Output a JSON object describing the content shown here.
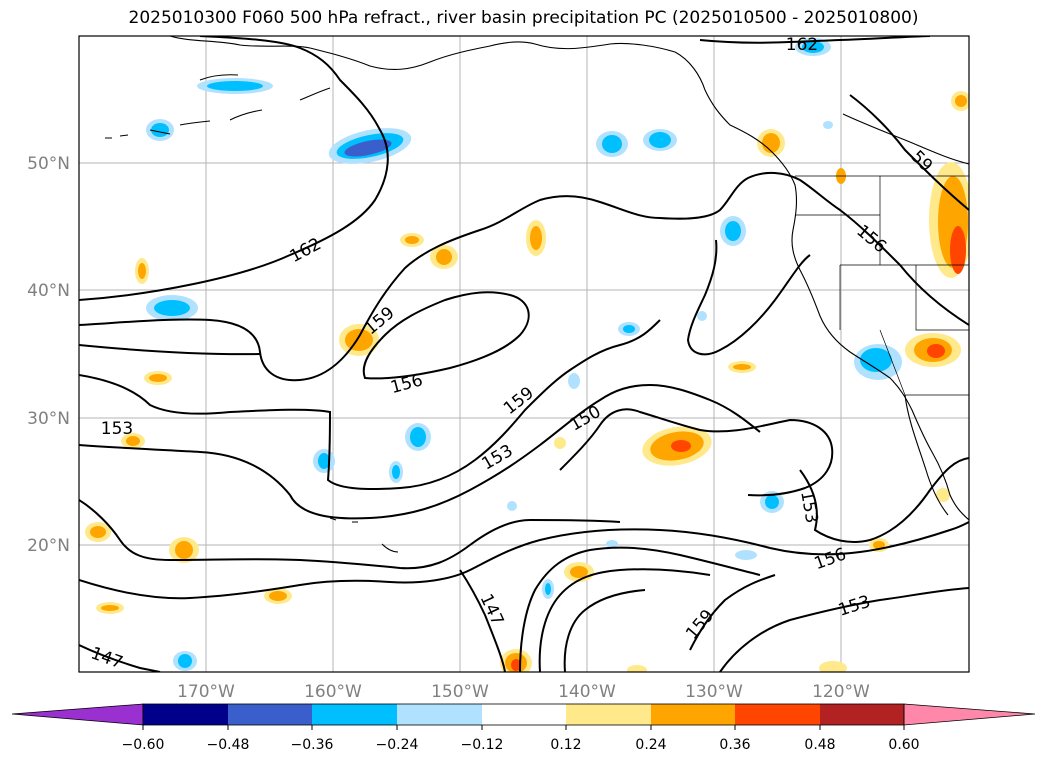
{
  "title": "2025010300 F060 500 hPa refract., river basin precipitation PC (2025010500 - 2025010800)",
  "lat_labels": [
    "50°N",
    "40°N",
    "30°N",
    "20°N"
  ],
  "lon_labels": [
    "170°W",
    "160°W",
    "150°W",
    "140°W",
    "130°W",
    "120°W"
  ],
  "contour_labels": [
    {
      "text": "162"
    },
    {
      "text": "162"
    },
    {
      "text": "159"
    },
    {
      "text": "156"
    },
    {
      "text": "159"
    },
    {
      "text": "150"
    },
    {
      "text": "153"
    },
    {
      "text": "153"
    },
    {
      "text": "153"
    },
    {
      "text": "156"
    },
    {
      "text": "147"
    },
    {
      "text": "159"
    },
    {
      "text": "153"
    },
    {
      "text": "147"
    },
    {
      "text": "156"
    },
    {
      "text": "59"
    }
  ],
  "colorbar": {
    "colors": [
      "#9b30d0",
      "#00008b",
      "#3a5fcd",
      "#00bfff",
      "#b0e2ff",
      "#ffffff",
      "#ffe98a",
      "#ffa500",
      "#ff4500",
      "#b22222",
      "#ff88aa"
    ],
    "ticks": [
      "−0.60",
      "−0.48",
      "−0.36",
      "−0.24",
      "−0.12",
      "0.12",
      "0.24",
      "0.36",
      "0.48",
      "0.60"
    ]
  },
  "chart_data": {
    "type": "map",
    "title": "2025010300 F060 500 hPa refract., river basin precipitation PC (2025010500 - 2025010800)",
    "lon_range": [
      -180,
      -110
    ],
    "lat_range": [
      10,
      60
    ],
    "gridlines": true,
    "contour_levels_shown": [
      147,
      150,
      153,
      156,
      159,
      162
    ],
    "colorbar_levels": [
      -0.6,
      -0.48,
      -0.36,
      -0.24,
      -0.12,
      0.12,
      0.24,
      0.36,
      0.48,
      0.6
    ]
  }
}
